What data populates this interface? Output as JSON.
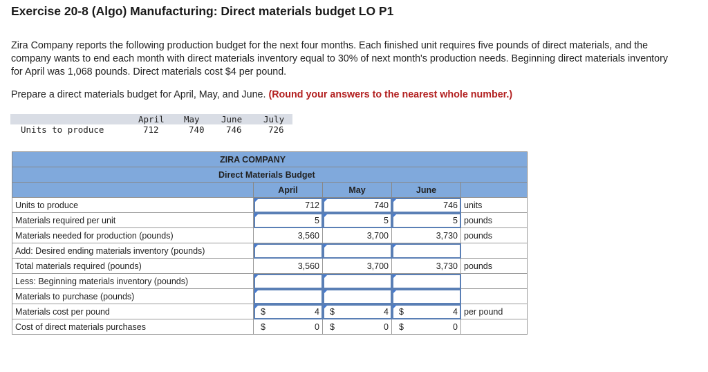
{
  "title": "Exercise 20-8 (Algo) Manufacturing: Direct materials budget LO P1",
  "intro": "Zira Company reports the following production budget for the next four months. Each finished unit requires five pounds of direct materials, and the company wants to end each month with direct materials inventory equal to 30% of next month's production needs. Beginning direct materials inventory for April was 1,068 pounds. Direct materials cost $4 per pound.",
  "instruction": "Prepare a direct materials budget for April, May, and June.",
  "instruction_note": "(Round your answers to the nearest whole number.)",
  "production": {
    "label": "Units to produce",
    "months": [
      "April",
      "May",
      "June",
      "July"
    ],
    "values": [
      "712",
      "740",
      "746",
      "726"
    ]
  },
  "budget": {
    "company": "ZIRA COMPANY",
    "title": "Direct Materials Budget",
    "months": [
      "April",
      "May",
      "June"
    ],
    "rows": [
      {
        "label": "Units to produce",
        "values": [
          "712",
          "740",
          "746"
        ],
        "unit": "units",
        "input": true
      },
      {
        "label": "Materials required per unit",
        "values": [
          "5",
          "5",
          "5"
        ],
        "unit": "pounds",
        "input": true
      },
      {
        "label": "Materials needed for production (pounds)",
        "values": [
          "3,560",
          "3,700",
          "3,730"
        ],
        "unit": "pounds",
        "input": false
      },
      {
        "label": "Add: Desired ending materials inventory (pounds)",
        "values": [
          "",
          "",
          ""
        ],
        "unit": "",
        "input": true
      },
      {
        "label": "Total materials required (pounds)",
        "values": [
          "3,560",
          "3,700",
          "3,730"
        ],
        "unit": "pounds",
        "input": false
      },
      {
        "label": "Less: Beginning materials inventory (pounds)",
        "values": [
          "",
          "",
          ""
        ],
        "unit": "",
        "input": true
      },
      {
        "label": "Materials to purchase (pounds)",
        "values": [
          "",
          "",
          ""
        ],
        "unit": "",
        "input": true
      },
      {
        "label": "Materials cost per pound",
        "values": [
          "4",
          "4",
          "4"
        ],
        "unit": "per pound",
        "input": true,
        "dollar": "$"
      },
      {
        "label": "Cost of direct materials purchases",
        "values": [
          "0",
          "0",
          "0"
        ],
        "unit": "",
        "input": false,
        "dollar": "$"
      }
    ]
  }
}
